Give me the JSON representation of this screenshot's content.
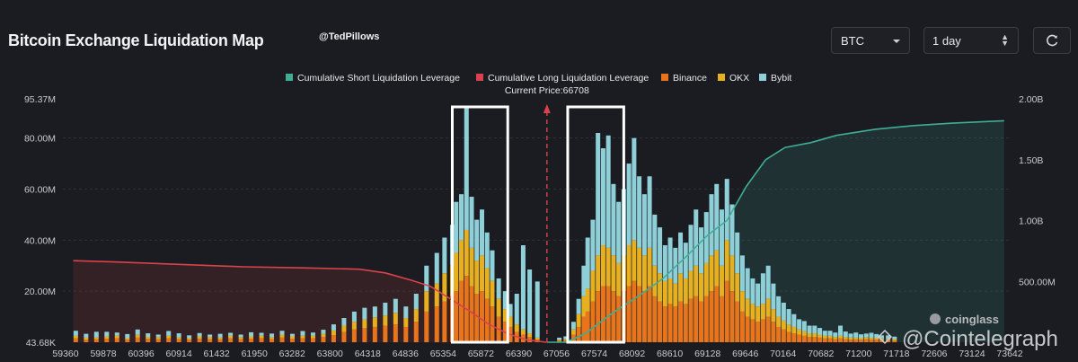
{
  "header": {
    "title": "Bitcoin Exchange Liquidation Map",
    "handle": "@TedPillows",
    "symbol_select": "BTC",
    "range_select": "1 day"
  },
  "watermark": {
    "coinglass": "coinglass",
    "cointelegraph": "@Cointelegraph"
  },
  "colors": {
    "background": "#1b1c21",
    "binance": "#e8741c",
    "okx": "#e7b021",
    "bybit": "#8fd0d8",
    "short_cumulative": "#3fae95",
    "long_cumulative": "#d9434b",
    "current_price_line": "#d9434b",
    "highlight_box": "#ffffff"
  },
  "chart_data": {
    "type": "bar",
    "stacked": true,
    "x_ticks": [
      "59360",
      "59878",
      "60396",
      "60914",
      "61432",
      "61950",
      "63282",
      "63800",
      "64318",
      "64836",
      "65354",
      "65872",
      "66390",
      "67056",
      "67574",
      "68092",
      "68610",
      "69128",
      "69646",
      "70164",
      "70682",
      "71200",
      "71718",
      "72606",
      "73124",
      "73642"
    ],
    "x_range": [
      59200,
      73900
    ],
    "y_left": {
      "ticks": [
        "95.37M",
        "80.00M",
        "60.00M",
        "40.00M",
        "20.00M",
        "43.68K"
      ],
      "range": [
        0,
        95.37
      ]
    },
    "y_right": {
      "ticks": [
        "2.00B",
        "1.50B",
        "1.00B",
        "500.00M"
      ],
      "range": [
        0,
        2.0
      ]
    },
    "current_price": 66708,
    "current_price_label": "Current Price:66708",
    "legend": [
      {
        "name": "Cumulative Short Liquidation Leverage",
        "color": "#3fae95"
      },
      {
        "name": "Cumulative Long Liquidation Leverage",
        "color": "#d9434b"
      },
      {
        "name": "Binance",
        "color": "#e8741c"
      },
      {
        "name": "OKX",
        "color": "#e7b021"
      },
      {
        "name": "Bybit",
        "color": "#8fd0d8"
      }
    ],
    "bars": [
      [
        59400,
        1.5,
        1.0,
        2.0
      ],
      [
        59560,
        1.0,
        0.8,
        1.5
      ],
      [
        59720,
        1.2,
        0.7,
        2.2
      ],
      [
        59880,
        1.4,
        0.9,
        1.8
      ],
      [
        60040,
        1.6,
        1.0,
        1.2
      ],
      [
        60200,
        1.0,
        0.6,
        1.6
      ],
      [
        60360,
        1.8,
        1.1,
        2.1
      ],
      [
        60520,
        1.3,
        0.8,
        1.4
      ],
      [
        60680,
        1.2,
        0.8,
        1.0
      ],
      [
        60840,
        1.5,
        1.0,
        1.9
      ],
      [
        61000,
        1.2,
        0.7,
        1.6
      ],
      [
        61160,
        1.0,
        0.6,
        1.1
      ],
      [
        61320,
        1.4,
        0.9,
        1.3
      ],
      [
        61480,
        1.2,
        0.8,
        1.0
      ],
      [
        61640,
        1.1,
        0.7,
        1.5
      ],
      [
        61800,
        1.5,
        1.0,
        1.2
      ],
      [
        61960,
        1.2,
        0.8,
        1.0
      ],
      [
        62120,
        1.4,
        0.9,
        1.6
      ],
      [
        62280,
        1.6,
        1.0,
        1.1
      ],
      [
        62440,
        1.2,
        0.8,
        1.4
      ],
      [
        62600,
        1.8,
        1.2,
        1.5
      ],
      [
        62760,
        1.4,
        0.9,
        1.0
      ],
      [
        62920,
        1.5,
        1.1,
        1.8
      ],
      [
        63080,
        1.6,
        1.0,
        1.2
      ],
      [
        63240,
        2.0,
        1.3,
        1.6
      ],
      [
        63400,
        2.8,
        1.8,
        2.4
      ],
      [
        63560,
        4.0,
        2.5,
        3.0
      ],
      [
        63720,
        5.0,
        3.0,
        4.0
      ],
      [
        63880,
        5.5,
        3.5,
        4.5
      ],
      [
        64040,
        6.0,
        3.8,
        4.2
      ],
      [
        64200,
        6.5,
        4.0,
        5.0
      ],
      [
        64360,
        7.0,
        4.5,
        5.5
      ],
      [
        64520,
        6.0,
        3.5,
        4.5
      ],
      [
        64680,
        8.0,
        5.0,
        6.0
      ],
      [
        64840,
        12.0,
        8.0,
        10.0
      ],
      [
        65000,
        14.0,
        9.0,
        12.0
      ],
      [
        65120,
        16.0,
        11.0,
        14.0
      ],
      [
        65240,
        18.0,
        12.0,
        16.0
      ],
      [
        65300,
        20.0,
        15.0,
        20.0
      ],
      [
        65380,
        24.0,
        16.0,
        18.0
      ],
      [
        65460,
        26.0,
        18.0,
        48.0
      ],
      [
        65540,
        22.0,
        15.0,
        20.0
      ],
      [
        65620,
        19.0,
        13.0,
        16.0
      ],
      [
        65700,
        20.0,
        14.0,
        18.0
      ],
      [
        65780,
        17.0,
        12.0,
        14.0
      ],
      [
        65860,
        14.0,
        10.0,
        12.0
      ],
      [
        65960,
        10.0,
        7.0,
        8.0
      ],
      [
        66060,
        8.0,
        5.0,
        7.0
      ],
      [
        66140,
        6.0,
        4.0,
        5.0
      ],
      [
        66240,
        4.0,
        3.0,
        12.0
      ],
      [
        66340,
        3.0,
        2.0,
        33.0
      ],
      [
        66440,
        2.0,
        1.5,
        25.0
      ],
      [
        66560,
        1.0,
        0.8,
        22.0
      ],
      [
        66900,
        0.6,
        0.4,
        0.8
      ],
      [
        67000,
        0.8,
        0.5,
        1.0
      ],
      [
        67120,
        3.0,
        2.0,
        3.0
      ],
      [
        67200,
        6.0,
        5.0,
        6.0
      ],
      [
        67280,
        10.0,
        8.0,
        12.0
      ],
      [
        67340,
        12.0,
        9.0,
        20.0
      ],
      [
        67420,
        16.0,
        12.0,
        20.0
      ],
      [
        67500,
        20.0,
        14.0,
        48.0
      ],
      [
        67580,
        22.0,
        16.0,
        38.0
      ],
      [
        67660,
        22.0,
        15.0,
        44.0
      ],
      [
        67740,
        20.0,
        14.0,
        28.0
      ],
      [
        67820,
        18.0,
        13.0,
        24.0
      ],
      [
        67900,
        20.0,
        14.0,
        26.0
      ],
      [
        67980,
        22.0,
        16.0,
        32.0
      ],
      [
        68060,
        24.0,
        16.0,
        40.0
      ],
      [
        68140,
        22.0,
        15.0,
        28.0
      ],
      [
        68220,
        20.0,
        14.0,
        24.0
      ],
      [
        68300,
        22.0,
        15.0,
        28.0
      ],
      [
        68380,
        18.0,
        12.0,
        20.0
      ],
      [
        68460,
        16.0,
        11.0,
        18.0
      ],
      [
        68540,
        14.0,
        10.0,
        14.0
      ],
      [
        68620,
        15.0,
        10.0,
        16.0
      ],
      [
        68700,
        14.0,
        9.0,
        14.0
      ],
      [
        68780,
        16.0,
        11.0,
        16.0
      ],
      [
        68860,
        15.0,
        10.0,
        14.0
      ],
      [
        68940,
        17.0,
        11.0,
        18.0
      ],
      [
        69020,
        18.0,
        12.0,
        22.0
      ],
      [
        69100,
        16.0,
        11.0,
        18.0
      ],
      [
        69180,
        18.0,
        13.0,
        20.0
      ],
      [
        69260,
        20.0,
        14.0,
        24.0
      ],
      [
        69340,
        22.0,
        14.0,
        26.0
      ],
      [
        69420,
        18.0,
        12.0,
        22.0
      ],
      [
        69500,
        24.0,
        16.0,
        24.0
      ],
      [
        69580,
        20.0,
        14.0,
        20.0
      ],
      [
        69660,
        16.0,
        11.0,
        16.0
      ],
      [
        69740,
        12.0,
        8.0,
        14.0
      ],
      [
        69820,
        10.0,
        7.0,
        12.0
      ],
      [
        69900,
        9.0,
        6.0,
        10.0
      ],
      [
        69980,
        8.0,
        6.0,
        9.0
      ],
      [
        70060,
        9.0,
        6.0,
        12.0
      ],
      [
        70140,
        10.0,
        7.0,
        13.0
      ],
      [
        70220,
        8.0,
        5.0,
        10.0
      ],
      [
        70300,
        6.0,
        4.0,
        8.0
      ],
      [
        70380,
        5.0,
        3.5,
        7.0
      ],
      [
        70460,
        4.0,
        3.0,
        6.0
      ],
      [
        70540,
        3.5,
        2.5,
        5.0
      ],
      [
        70620,
        3.0,
        2.0,
        4.0
      ],
      [
        70700,
        2.5,
        1.8,
        4.0
      ],
      [
        70780,
        2.0,
        1.5,
        3.0
      ],
      [
        70860,
        2.0,
        1.5,
        3.0
      ],
      [
        70940,
        1.8,
        1.2,
        2.6
      ],
      [
        71020,
        1.5,
        1.0,
        2.0
      ],
      [
        71100,
        1.5,
        1.0,
        2.0
      ],
      [
        71180,
        1.2,
        0.8,
        1.8
      ],
      [
        71260,
        1.5,
        1.0,
        4.0
      ],
      [
        71340,
        1.2,
        0.8,
        2.2
      ],
      [
        71420,
        1.0,
        0.8,
        1.6
      ],
      [
        71500,
        1.1,
        0.7,
        2.0
      ],
      [
        71580,
        1.0,
        0.6,
        1.5
      ],
      [
        71660,
        1.2,
        0.8,
        1.4
      ],
      [
        71740,
        1.0,
        0.7,
        2.0
      ],
      [
        71820,
        1.0,
        0.6,
        1.6
      ],
      [
        71900,
        0.9,
        0.6,
        1.2
      ],
      [
        72000,
        0.8,
        0.5,
        1.4
      ],
      [
        72100,
        0.7,
        0.5,
        1.0
      ]
    ],
    "long_curve": [
      [
        59360,
        0.67
      ],
      [
        60000,
        0.66
      ],
      [
        61000,
        0.64
      ],
      [
        62000,
        0.62
      ],
      [
        63000,
        0.61
      ],
      [
        63800,
        0.6
      ],
      [
        64200,
        0.57
      ],
      [
        64600,
        0.51
      ],
      [
        64900,
        0.46
      ],
      [
        65200,
        0.36
      ],
      [
        65500,
        0.26
      ],
      [
        65800,
        0.15
      ],
      [
        66100,
        0.07
      ],
      [
        66400,
        0.02
      ],
      [
        66700,
        0.0
      ]
    ],
    "short_curve": [
      [
        66708,
        0.0
      ],
      [
        67000,
        0.0
      ],
      [
        67300,
        0.07
      ],
      [
        67700,
        0.23
      ],
      [
        68100,
        0.37
      ],
      [
        68500,
        0.52
      ],
      [
        68900,
        0.72
      ],
      [
        69200,
        0.88
      ],
      [
        69500,
        1.0
      ],
      [
        69800,
        1.28
      ],
      [
        70100,
        1.5
      ],
      [
        70400,
        1.6
      ],
      [
        70800,
        1.64
      ],
      [
        71200,
        1.7
      ],
      [
        71800,
        1.75
      ],
      [
        72400,
        1.78
      ],
      [
        73000,
        1.8
      ],
      [
        73800,
        1.82
      ]
    ],
    "highlight_ranges": [
      [
        65240,
        66100
      ],
      [
        67030,
        67900
      ]
    ]
  }
}
